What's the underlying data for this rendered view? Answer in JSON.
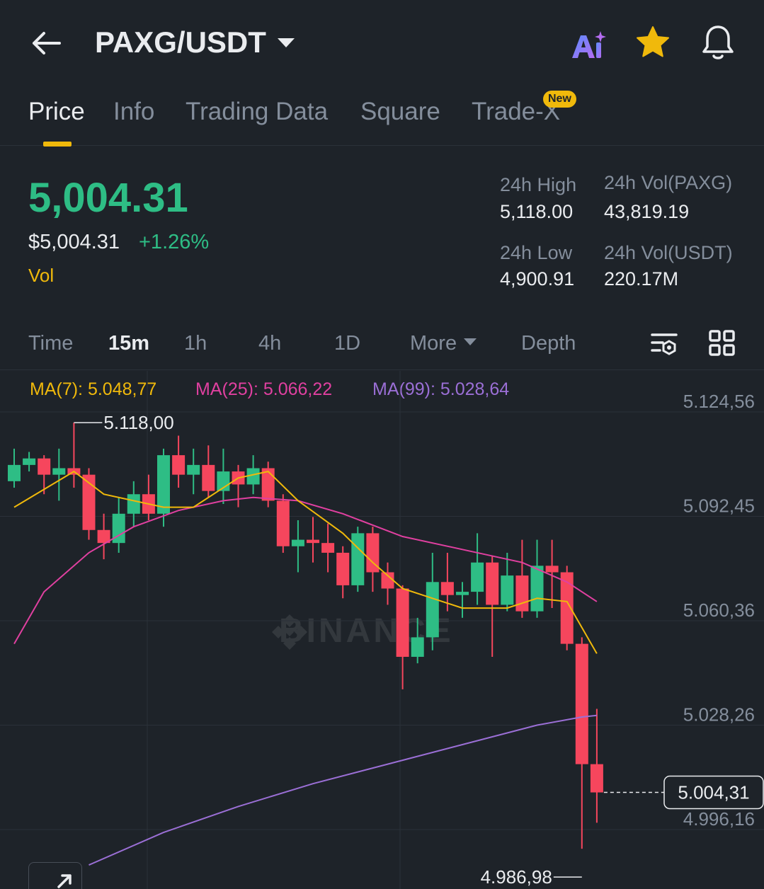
{
  "header": {
    "pair": "PAXG/USDT"
  },
  "tabs": [
    {
      "label": "Price",
      "active": true
    },
    {
      "label": "Info",
      "active": false
    },
    {
      "label": "Trading Data",
      "active": false
    },
    {
      "label": "Square",
      "active": false
    },
    {
      "label": "Trade-X",
      "active": false,
      "badge": "New"
    }
  ],
  "ticker": {
    "last_price": "5,004.31",
    "last_price_usd": "$5,004.31",
    "change_pct": "+1.26%",
    "vol_link": "Vol",
    "high_label": "24h High",
    "high_value": "5,118.00",
    "low_label": "24h Low",
    "low_value": "4,900.91",
    "vol_base_label": "24h Vol(PAXG)",
    "vol_base_value": "43,819.19",
    "vol_quote_label": "24h Vol(USDT)",
    "vol_quote_value": "220.17M"
  },
  "intervals": [
    {
      "label": "Time",
      "active": false
    },
    {
      "label": "15m",
      "active": true
    },
    {
      "label": "1h",
      "active": false
    },
    {
      "label": "4h",
      "active": false
    },
    {
      "label": "1D",
      "active": false
    },
    {
      "label": "More",
      "active": false
    },
    {
      "label": "Depth",
      "active": false
    }
  ],
  "indicators": {
    "ma7": "MA(7): 5.048,77",
    "ma25": "MA(25): 5.066,22",
    "ma99": "MA(99): 5.028,64"
  },
  "colors": {
    "up": "#2ebd85",
    "down": "#f6465d",
    "accent": "#f0b90b",
    "ma7": "#f0b90b",
    "ma25": "#e040a0",
    "ma99": "#9b6fd6",
    "bg": "#1e2329"
  },
  "watermark": "BINANCE",
  "chart_data": {
    "type": "candlestick",
    "y_ticks": [
      "5.124,56",
      "5.092,45",
      "5.060,36",
      "5.028,26",
      "4.996,16"
    ],
    "ylim": [
      4982,
      5130
    ],
    "max_marker": "5.118,00",
    "min_marker": "4.986,98",
    "last_price_tag": "5.004,31",
    "last_price": 5004.31,
    "candles": [
      [
        5100,
        5105,
        5098,
        5110
      ],
      [
        5105,
        5107,
        5103,
        5109
      ],
      [
        5107,
        5102,
        5096,
        5108
      ],
      [
        5102,
        5104,
        5094,
        5110
      ],
      [
        5104,
        5102,
        5098,
        5118
      ],
      [
        5102,
        5085,
        5082,
        5104
      ],
      [
        5085,
        5081,
        5076,
        5090
      ],
      [
        5081,
        5090,
        5078,
        5095
      ],
      [
        5090,
        5096,
        5086,
        5100
      ],
      [
        5096,
        5090,
        5088,
        5102
      ],
      [
        5090,
        5108,
        5086,
        5110
      ],
      [
        5108,
        5102,
        5098,
        5114
      ],
      [
        5102,
        5105,
        5096,
        5110
      ],
      [
        5105,
        5097,
        5095,
        5111
      ],
      [
        5097,
        5103,
        5093,
        5110
      ],
      [
        5103,
        5099,
        5092,
        5105
      ],
      [
        5099,
        5104,
        5096,
        5108
      ],
      [
        5104,
        5094,
        5092,
        5106
      ],
      [
        5094,
        5080,
        5078,
        5096
      ],
      [
        5080,
        5082,
        5072,
        5088
      ],
      [
        5082,
        5081,
        5075,
        5089
      ],
      [
        5081,
        5078,
        5072,
        5087
      ],
      [
        5078,
        5068,
        5064,
        5080
      ],
      [
        5068,
        5084,
        5066,
        5086
      ],
      [
        5084,
        5072,
        5066,
        5086
      ],
      [
        5072,
        5067,
        5062,
        5075
      ],
      [
        5067,
        5046,
        5036,
        5068
      ],
      [
        5046,
        5052,
        5044,
        5058
      ],
      [
        5052,
        5069,
        5048,
        5078
      ],
      [
        5069,
        5065,
        5060,
        5078
      ],
      [
        5065,
        5066,
        5058,
        5069
      ],
      [
        5066,
        5075,
        5062,
        5084
      ],
      [
        5075,
        5062,
        5046,
        5077
      ],
      [
        5062,
        5071,
        5060,
        5078
      ],
      [
        5071,
        5060,
        5058,
        5082
      ],
      [
        5060,
        5074,
        5058,
        5082
      ],
      [
        5074,
        5072,
        5061,
        5082
      ],
      [
        5072,
        5050,
        5048,
        5074
      ],
      [
        5050,
        5013,
        4986.98,
        5052
      ],
      [
        5013,
        5004.31,
        4995,
        5030
      ]
    ],
    "ma7": [
      [
        0,
        5092
      ],
      [
        4,
        5103
      ],
      [
        6,
        5096
      ],
      [
        10,
        5092
      ],
      [
        12,
        5092
      ],
      [
        15,
        5101
      ],
      [
        17,
        5103
      ],
      [
        19,
        5094
      ],
      [
        22,
        5084
      ],
      [
        24,
        5075
      ],
      [
        26,
        5067
      ],
      [
        28,
        5064
      ],
      [
        30,
        5061
      ],
      [
        33,
        5061
      ],
      [
        35,
        5064
      ],
      [
        37,
        5063
      ],
      [
        38,
        5055
      ],
      [
        39,
        5047
      ]
    ],
    "ma25": [
      [
        0,
        5050
      ],
      [
        2,
        5066
      ],
      [
        5,
        5078
      ],
      [
        8,
        5086
      ],
      [
        11,
        5091
      ],
      [
        14,
        5094
      ],
      [
        16,
        5095
      ],
      [
        19,
        5094
      ],
      [
        22,
        5090
      ],
      [
        26,
        5083
      ],
      [
        30,
        5079
      ],
      [
        34,
        5075
      ],
      [
        37,
        5069
      ],
      [
        39,
        5063
      ]
    ],
    "ma99": [
      [
        5,
        4982
      ],
      [
        10,
        4992
      ],
      [
        15,
        5000
      ],
      [
        20,
        5007
      ],
      [
        25,
        5013
      ],
      [
        30,
        5019
      ],
      [
        35,
        5025
      ],
      [
        38,
        5027.5
      ],
      [
        39,
        5028
      ]
    ]
  }
}
